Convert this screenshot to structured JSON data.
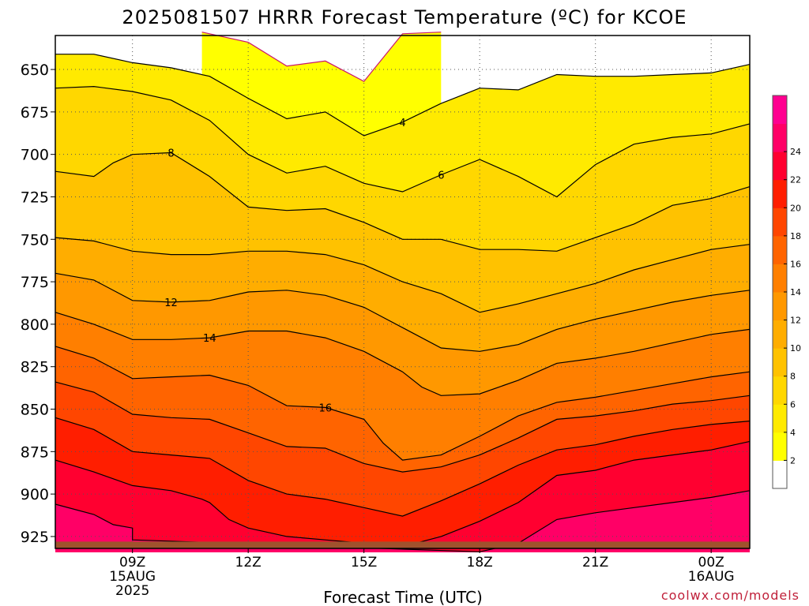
{
  "chart_data": {
    "type": "heatmap",
    "title": "2025081507 HRRR Forecast Temperature (ºC) for KCOE",
    "xlabel": "Forecast Time (UTC)",
    "ylabel": "",
    "credit": "coolwx.com/models",
    "y_axis": {
      "scale": "pressure (inverted)",
      "range": [
        932,
        630
      ],
      "ticks": [
        650,
        675,
        700,
        725,
        750,
        775,
        800,
        825,
        850,
        875,
        900,
        925
      ]
    },
    "x_axis": {
      "range_hours_utc": [
        "2025-08-15 07Z",
        "2025-08-16 01Z"
      ],
      "ticks": [
        {
          "hour": 9,
          "lines": [
            "09Z",
            "15AUG",
            "2025"
          ]
        },
        {
          "hour": 12,
          "lines": [
            "12Z"
          ]
        },
        {
          "hour": 15,
          "lines": [
            "15Z"
          ]
        },
        {
          "hour": 18,
          "lines": [
            "18Z"
          ]
        },
        {
          "hour": 21,
          "lines": [
            "21Z"
          ]
        },
        {
          "hour": 24,
          "lines": [
            "00Z",
            "16AUG"
          ]
        }
      ]
    },
    "colorbar": {
      "levels": [
        2,
        4,
        6,
        8,
        10,
        12,
        14,
        16,
        18,
        20,
        22,
        24
      ],
      "tick_labels": [
        "2",
        "4",
        "6",
        "8",
        "10",
        "12",
        "14",
        "16",
        "18",
        "20",
        "22",
        "24"
      ],
      "colors": [
        "#ffffff",
        "#ffff00",
        "#ffea00",
        "#ffd700",
        "#ffc200",
        "#ffad00",
        "#ff9800",
        "#ff7f00",
        "#ff6400",
        "#ff4600",
        "#ff1e00",
        "#ff0030",
        "#ff0066",
        "#ff0090"
      ]
    },
    "isotherm_labels": [
      "4",
      "6",
      "8",
      "12",
      "14",
      "16"
    ],
    "isotherms": [
      {
        "t": 2,
        "points": [
          [
            10.8,
            628
          ],
          [
            12.0,
            634
          ],
          [
            13.0,
            648
          ],
          [
            14.0,
            645
          ],
          [
            15.0,
            657
          ],
          [
            16.0,
            629
          ],
          [
            17.0,
            628
          ]
        ]
      },
      {
        "t": 4,
        "points": [
          [
            7.0,
            641
          ],
          [
            8.0,
            641
          ],
          [
            9.0,
            646
          ],
          [
            10.0,
            649
          ],
          [
            11.0,
            654
          ],
          [
            12.0,
            667
          ],
          [
            13.0,
            679
          ],
          [
            14.0,
            675
          ],
          [
            15.0,
            689
          ],
          [
            16.0,
            681
          ],
          [
            17.0,
            670
          ],
          [
            18.0,
            661
          ],
          [
            19.0,
            662
          ],
          [
            20.0,
            653
          ],
          [
            21.0,
            654
          ],
          [
            22.0,
            654
          ],
          [
            23.0,
            653
          ],
          [
            24.0,
            652
          ],
          [
            25.0,
            647
          ]
        ]
      },
      {
        "t": 6,
        "points": [
          [
            7.0,
            661
          ],
          [
            8.0,
            660
          ],
          [
            9.0,
            663
          ],
          [
            10.0,
            668
          ],
          [
            11.0,
            680
          ],
          [
            12.0,
            700
          ],
          [
            13.0,
            711
          ],
          [
            14.0,
            707
          ],
          [
            15.0,
            717
          ],
          [
            16.0,
            722
          ],
          [
            17.0,
            712
          ],
          [
            18.0,
            703
          ],
          [
            19.0,
            713
          ],
          [
            20.0,
            725
          ],
          [
            21.0,
            706
          ],
          [
            22.0,
            694
          ],
          [
            23.0,
            690
          ],
          [
            24.0,
            688
          ],
          [
            25.0,
            682
          ]
        ]
      },
      {
        "t": 8,
        "points": [
          [
            7.0,
            710
          ],
          [
            8.0,
            713
          ],
          [
            8.5,
            705
          ],
          [
            9.0,
            700
          ],
          [
            10.0,
            699
          ],
          [
            11.0,
            713
          ],
          [
            12.0,
            731
          ],
          [
            13.0,
            733
          ],
          [
            14.0,
            732
          ],
          [
            15.0,
            740
          ],
          [
            16.0,
            750
          ],
          [
            17.0,
            750
          ],
          [
            18.0,
            756
          ],
          [
            19.0,
            756
          ],
          [
            20.0,
            757
          ],
          [
            21.0,
            749
          ],
          [
            22.0,
            741
          ],
          [
            23.0,
            730
          ],
          [
            24.0,
            726
          ],
          [
            25.0,
            719
          ]
        ]
      },
      {
        "t": 10,
        "points": [
          [
            7.0,
            749
          ],
          [
            8.0,
            751
          ],
          [
            9.0,
            757
          ],
          [
            10.0,
            759
          ],
          [
            11.0,
            759
          ],
          [
            12.0,
            757
          ],
          [
            13.0,
            757
          ],
          [
            14.0,
            759
          ],
          [
            15.0,
            765
          ],
          [
            16.0,
            775
          ],
          [
            17.0,
            782
          ],
          [
            18.0,
            793
          ],
          [
            19.0,
            788
          ],
          [
            20.0,
            782
          ],
          [
            21.0,
            776
          ],
          [
            22.0,
            768
          ],
          [
            23.0,
            762
          ],
          [
            24.0,
            756
          ],
          [
            25.0,
            753
          ]
        ]
      },
      {
        "t": 12,
        "points": [
          [
            7.0,
            770
          ],
          [
            8.0,
            774
          ],
          [
            9.0,
            786
          ],
          [
            10.0,
            787
          ],
          [
            11.0,
            786
          ],
          [
            12.0,
            781
          ],
          [
            13.0,
            780
          ],
          [
            14.0,
            783
          ],
          [
            15.0,
            790
          ],
          [
            16.0,
            802
          ],
          [
            17.0,
            814
          ],
          [
            18.0,
            816
          ],
          [
            19.0,
            812
          ],
          [
            20.0,
            803
          ],
          [
            21.0,
            797
          ],
          [
            22.0,
            792
          ],
          [
            23.0,
            787
          ],
          [
            24.0,
            783
          ],
          [
            25.0,
            780
          ]
        ]
      },
      {
        "t": 14,
        "points": [
          [
            7.0,
            793
          ],
          [
            8.0,
            800
          ],
          [
            9.0,
            809
          ],
          [
            10.0,
            809
          ],
          [
            11.0,
            808
          ],
          [
            12.0,
            804
          ],
          [
            13.0,
            804
          ],
          [
            14.0,
            808
          ],
          [
            15.0,
            816
          ],
          [
            16.0,
            828
          ],
          [
            16.5,
            837
          ],
          [
            17.0,
            842
          ],
          [
            18.0,
            841
          ],
          [
            19.0,
            833
          ],
          [
            20.0,
            823
          ],
          [
            21.0,
            820
          ],
          [
            22.0,
            816
          ],
          [
            23.0,
            811
          ],
          [
            24.0,
            806
          ],
          [
            25.0,
            803
          ]
        ]
      },
      {
        "t": 16,
        "points": [
          [
            7.0,
            813
          ],
          [
            8.0,
            820
          ],
          [
            9.0,
            832
          ],
          [
            10.0,
            831
          ],
          [
            11.0,
            830
          ],
          [
            12.0,
            836
          ],
          [
            13.0,
            848
          ],
          [
            14.0,
            849
          ],
          [
            15.0,
            856
          ],
          [
            15.5,
            870
          ],
          [
            16.0,
            880
          ],
          [
            17.0,
            877
          ],
          [
            18.0,
            866
          ],
          [
            19.0,
            854
          ],
          [
            20.0,
            846
          ],
          [
            21.0,
            843
          ],
          [
            22.0,
            839
          ],
          [
            23.0,
            835
          ],
          [
            24.0,
            831
          ],
          [
            25.0,
            828
          ]
        ]
      },
      {
        "t": 18,
        "points": [
          [
            7.0,
            834
          ],
          [
            8.0,
            840
          ],
          [
            9.0,
            853
          ],
          [
            10.0,
            855
          ],
          [
            11.0,
            856
          ],
          [
            12.0,
            864
          ],
          [
            13.0,
            872
          ],
          [
            14.0,
            873
          ],
          [
            15.0,
            882
          ],
          [
            16.0,
            887
          ],
          [
            17.0,
            884
          ],
          [
            18.0,
            877
          ],
          [
            19.0,
            867
          ],
          [
            20.0,
            856
          ],
          [
            21.0,
            854
          ],
          [
            22.0,
            851
          ],
          [
            23.0,
            847
          ],
          [
            24.0,
            845
          ],
          [
            25.0,
            842
          ]
        ]
      },
      {
        "t": 20,
        "points": [
          [
            7.0,
            855
          ],
          [
            8.0,
            862
          ],
          [
            9.0,
            875
          ],
          [
            10.0,
            877
          ],
          [
            11.0,
            879
          ],
          [
            12.0,
            892
          ],
          [
            13.0,
            900
          ],
          [
            14.0,
            903
          ],
          [
            15.0,
            908
          ],
          [
            16.0,
            913
          ],
          [
            17.0,
            904
          ],
          [
            18.0,
            894
          ],
          [
            19.0,
            883
          ],
          [
            20.0,
            874
          ],
          [
            21.0,
            871
          ],
          [
            22.0,
            866
          ],
          [
            23.0,
            862
          ],
          [
            24.0,
            859
          ],
          [
            25.0,
            857
          ]
        ]
      },
      {
        "t": 22,
        "points": [
          [
            7.0,
            880
          ],
          [
            8.0,
            887
          ],
          [
            9.0,
            895
          ],
          [
            10.0,
            898
          ],
          [
            10.8,
            903
          ],
          [
            11.0,
            905
          ],
          [
            11.5,
            915
          ],
          [
            12.0,
            920
          ],
          [
            13.0,
            925
          ],
          [
            14.0,
            927
          ],
          [
            15.0,
            929
          ],
          [
            16.0,
            931
          ],
          [
            17.0,
            925
          ],
          [
            18.0,
            916
          ],
          [
            19.0,
            905
          ],
          [
            20.0,
            889
          ],
          [
            21.0,
            886
          ],
          [
            22.0,
            880
          ],
          [
            23.0,
            877
          ],
          [
            24.0,
            874
          ],
          [
            25.0,
            869
          ]
        ]
      },
      {
        "t": 24,
        "points": [
          [
            7.0,
            906
          ],
          [
            8.0,
            912
          ],
          [
            8.5,
            918
          ],
          [
            9.0,
            920
          ],
          [
            9.0,
            927
          ],
          [
            18.0,
            934
          ],
          [
            19.0,
            929
          ],
          [
            20.0,
            915
          ],
          [
            21.0,
            911
          ],
          [
            22.0,
            908
          ],
          [
            23.0,
            905
          ],
          [
            24.0,
            902
          ],
          [
            25.0,
            898
          ]
        ]
      }
    ]
  }
}
